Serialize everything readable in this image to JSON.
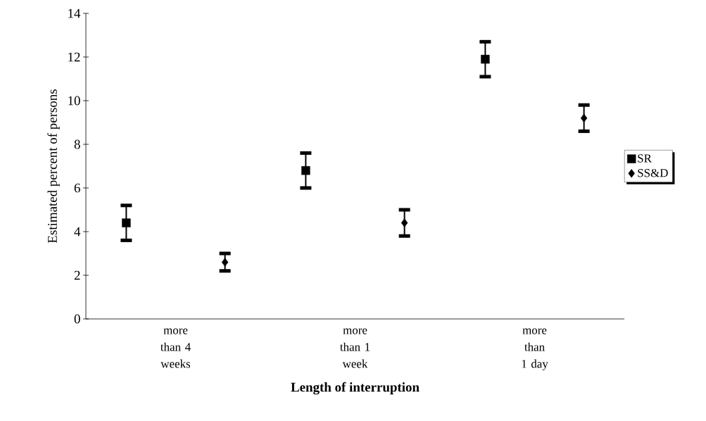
{
  "chart_data": {
    "type": "scatter",
    "xlabel": "Length of interruption",
    "ylabel": "Estimated percent of persons",
    "categories": [
      "more than 4 weeks",
      "more than 1 week",
      "more than 1 day"
    ],
    "series": [
      {
        "name": "SR",
        "color": "#000000",
        "marker": "square",
        "values": [
          4.4,
          6.8,
          11.9
        ],
        "errors": [
          0.8,
          0.8,
          0.8
        ]
      },
      {
        "name": "SS&D",
        "color": "#000000",
        "marker": "diamond",
        "values": [
          2.6,
          4.4,
          9.2
        ],
        "errors": [
          0.4,
          0.6,
          0.6
        ]
      }
    ],
    "ylim": [
      0,
      14
    ],
    "yticks": [
      0,
      2,
      4,
      6,
      8,
      10,
      12,
      14
    ],
    "legend": "right",
    "grid": false
  }
}
